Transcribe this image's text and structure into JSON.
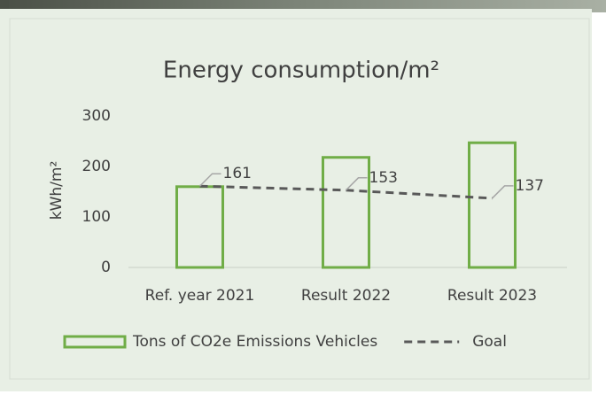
{
  "chart_data": {
    "type": "bar",
    "title": "Energy consumption/m²",
    "y_label": "kWh/m²",
    "categories": [
      "Ref. year 2021",
      "Result 2022",
      "Result 2023"
    ],
    "series": [
      {
        "name": "Tons of CO2e Emissions Vehicles",
        "type": "bar",
        "color": "#70ad47",
        "values": [
          160,
          218,
          247
        ]
      },
      {
        "name": "Goal",
        "type": "line",
        "dashed": true,
        "color": "#595959",
        "values": [
          161,
          153,
          137
        ],
        "data_labels": true
      }
    ],
    "ylim": [
      0,
      300
    ],
    "yticks": [
      0,
      100,
      200,
      300
    ],
    "grid": false,
    "legend": "bottom"
  }
}
